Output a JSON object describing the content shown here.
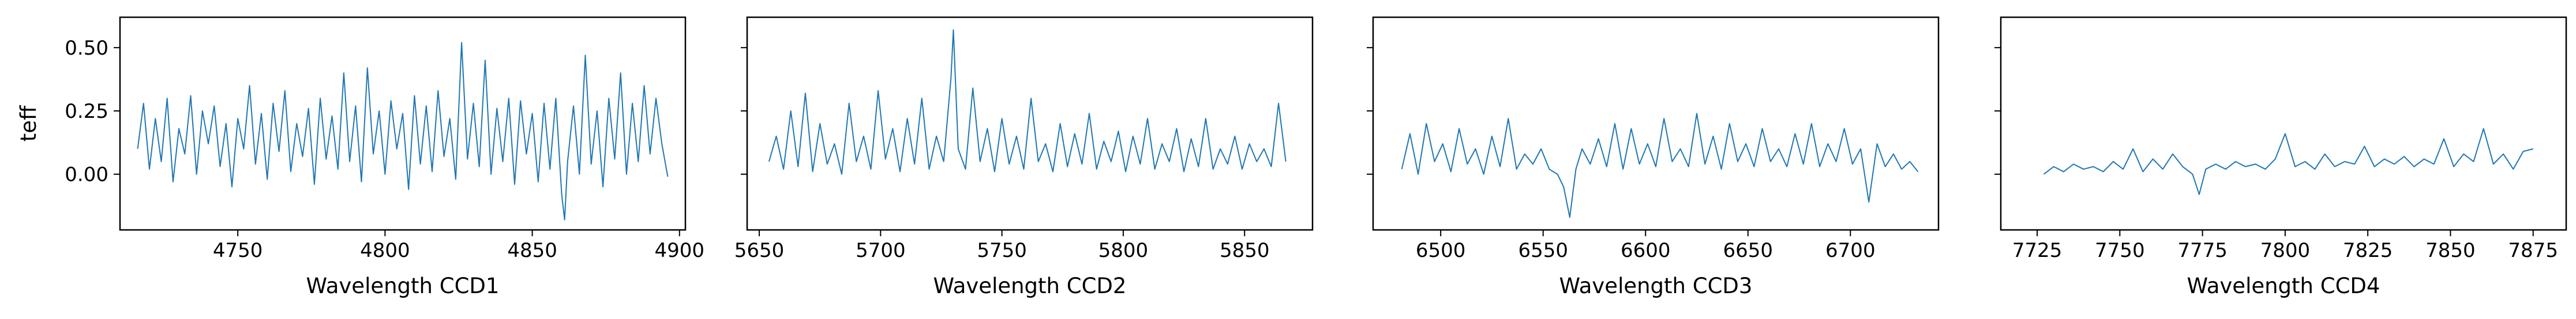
{
  "chart_data": [
    {
      "type": "line",
      "xlabel": "Wavelength CCD1",
      "ylabel": "teff",
      "xlim": [
        4710,
        4902
      ],
      "ylim": [
        -0.22,
        0.62
      ],
      "xticks": [
        4750,
        4800,
        4850,
        4900
      ],
      "xtick_labels": [
        "4750",
        "4800",
        "4850",
        "4900"
      ],
      "yticks": [
        0.0,
        0.25,
        0.5
      ],
      "ytick_labels": [
        "0.00",
        "0.25",
        "0.50"
      ],
      "series": [
        {
          "color": "#1f77b4",
          "x": [
            4716,
            4718,
            4720,
            4722,
            4724,
            4726,
            4728,
            4730,
            4732,
            4734,
            4736,
            4738,
            4740,
            4742,
            4744,
            4746,
            4748,
            4750,
            4752,
            4754,
            4756,
            4758,
            4760,
            4762,
            4764,
            4766,
            4768,
            4770,
            4772,
            4774,
            4776,
            4778,
            4780,
            4782,
            4784,
            4786,
            4788,
            4790,
            4792,
            4794,
            4796,
            4798,
            4800,
            4802,
            4804,
            4806,
            4808,
            4810,
            4812,
            4814,
            4816,
            4818,
            4820,
            4822,
            4824,
            4826,
            4828,
            4830,
            4832,
            4834,
            4836,
            4838,
            4840,
            4842,
            4844,
            4846,
            4848,
            4850,
            4852,
            4854,
            4856,
            4858,
            4860,
            4861,
            4862,
            4864,
            4866,
            4868,
            4870,
            4872,
            4874,
            4876,
            4878,
            4880,
            4882,
            4884,
            4886,
            4888,
            4890,
            4892,
            4894,
            4896
          ],
          "y": [
            0.1,
            0.28,
            0.02,
            0.22,
            0.05,
            0.3,
            -0.03,
            0.18,
            0.08,
            0.31,
            0.0,
            0.25,
            0.12,
            0.27,
            0.03,
            0.2,
            -0.05,
            0.22,
            0.1,
            0.35,
            0.04,
            0.24,
            -0.02,
            0.28,
            0.09,
            0.33,
            0.01,
            0.2,
            0.07,
            0.26,
            -0.04,
            0.3,
            0.06,
            0.23,
            0.02,
            0.4,
            0.05,
            0.27,
            -0.03,
            0.42,
            0.08,
            0.25,
            0.0,
            0.29,
            0.1,
            0.24,
            -0.06,
            0.31,
            0.04,
            0.27,
            0.01,
            0.33,
            0.07,
            0.22,
            -0.02,
            0.52,
            0.06,
            0.28,
            0.03,
            0.45,
            0.0,
            0.26,
            0.05,
            0.3,
            -0.04,
            0.29,
            0.08,
            0.24,
            -0.03,
            0.28,
            0.02,
            0.3,
            -0.08,
            -0.18,
            0.05,
            0.27,
            0.0,
            0.47,
            0.04,
            0.25,
            -0.05,
            0.3,
            0.06,
            0.4,
            0.0,
            0.28,
            0.05,
            0.35,
            0.08,
            0.3,
            0.12,
            -0.01
          ]
        }
      ]
    },
    {
      "type": "line",
      "xlabel": "Wavelength CCD2",
      "ylabel": "",
      "xlim": [
        5645,
        5878
      ],
      "ylim": [
        -0.22,
        0.62
      ],
      "xticks": [
        5650,
        5700,
        5750,
        5800,
        5850
      ],
      "xtick_labels": [
        "5650",
        "5700",
        "5750",
        "5800",
        "5850"
      ],
      "yticks": [
        0.0,
        0.25,
        0.5
      ],
      "ytick_labels": [
        "",
        "",
        ""
      ],
      "series": [
        {
          "color": "#1f77b4",
          "x": [
            5654,
            5657,
            5660,
            5663,
            5666,
            5669,
            5672,
            5675,
            5678,
            5681,
            5684,
            5687,
            5690,
            5693,
            5696,
            5699,
            5702,
            5705,
            5708,
            5711,
            5714,
            5717,
            5720,
            5723,
            5726,
            5729,
            5730,
            5732,
            5735,
            5738,
            5741,
            5744,
            5747,
            5750,
            5753,
            5756,
            5759,
            5762,
            5765,
            5768,
            5771,
            5774,
            5777,
            5780,
            5783,
            5786,
            5789,
            5792,
            5795,
            5798,
            5801,
            5804,
            5807,
            5810,
            5813,
            5816,
            5819,
            5822,
            5825,
            5828,
            5831,
            5834,
            5837,
            5840,
            5843,
            5846,
            5849,
            5852,
            5855,
            5858,
            5861,
            5864,
            5867
          ],
          "y": [
            0.05,
            0.15,
            0.02,
            0.25,
            0.03,
            0.32,
            0.01,
            0.2,
            0.04,
            0.12,
            0.0,
            0.28,
            0.05,
            0.15,
            0.02,
            0.33,
            0.06,
            0.18,
            0.01,
            0.22,
            0.04,
            0.3,
            0.02,
            0.15,
            0.05,
            0.38,
            0.57,
            0.1,
            0.02,
            0.34,
            0.05,
            0.18,
            0.01,
            0.22,
            0.04,
            0.15,
            0.02,
            0.3,
            0.05,
            0.12,
            0.01,
            0.2,
            0.03,
            0.16,
            0.04,
            0.24,
            0.02,
            0.13,
            0.05,
            0.17,
            0.01,
            0.15,
            0.04,
            0.22,
            0.02,
            0.12,
            0.05,
            0.18,
            0.01,
            0.14,
            0.03,
            0.22,
            0.02,
            0.1,
            0.04,
            0.15,
            0.02,
            0.12,
            0.05,
            0.1,
            0.03,
            0.28,
            0.05
          ]
        }
      ]
    },
    {
      "type": "line",
      "xlabel": "Wavelength CCD3",
      "ylabel": "",
      "xlim": [
        6467,
        6743
      ],
      "ylim": [
        -0.22,
        0.62
      ],
      "xticks": [
        6500,
        6550,
        6600,
        6650,
        6700
      ],
      "xtick_labels": [
        "6500",
        "6550",
        "6600",
        "6650",
        "6700"
      ],
      "yticks": [
        0.0,
        0.25,
        0.5
      ],
      "ytick_labels": [
        "",
        "",
        ""
      ],
      "series": [
        {
          "color": "#1f77b4",
          "x": [
            6481,
            6485,
            6489,
            6493,
            6497,
            6501,
            6505,
            6509,
            6513,
            6517,
            6521,
            6525,
            6529,
            6533,
            6537,
            6541,
            6545,
            6549,
            6553,
            6557,
            6560,
            6563,
            6566,
            6569,
            6573,
            6577,
            6581,
            6585,
            6589,
            6593,
            6597,
            6601,
            6605,
            6609,
            6613,
            6617,
            6621,
            6625,
            6629,
            6633,
            6637,
            6641,
            6645,
            6649,
            6653,
            6657,
            6661,
            6665,
            6669,
            6673,
            6677,
            6681,
            6685,
            6689,
            6693,
            6697,
            6701,
            6705,
            6709,
            6713,
            6717,
            6721,
            6725,
            6729,
            6733
          ],
          "y": [
            0.02,
            0.16,
            0.0,
            0.2,
            0.05,
            0.12,
            0.01,
            0.18,
            0.04,
            0.1,
            0.0,
            0.15,
            0.03,
            0.22,
            0.02,
            0.08,
            0.04,
            0.1,
            0.02,
            0.0,
            -0.05,
            -0.17,
            0.02,
            0.1,
            0.04,
            0.14,
            0.03,
            0.2,
            0.02,
            0.18,
            0.04,
            0.12,
            0.03,
            0.22,
            0.05,
            0.1,
            0.03,
            0.24,
            0.04,
            0.15,
            0.02,
            0.2,
            0.05,
            0.12,
            0.03,
            0.18,
            0.05,
            0.1,
            0.03,
            0.16,
            0.04,
            0.2,
            0.03,
            0.12,
            0.05,
            0.18,
            0.04,
            0.1,
            -0.11,
            0.12,
            0.03,
            0.08,
            0.02,
            0.05,
            0.01
          ]
        }
      ]
    },
    {
      "type": "line",
      "xlabel": "Wavelength CCD4",
      "ylabel": "",
      "xlim": [
        7714,
        7885
      ],
      "ylim": [
        -0.22,
        0.62
      ],
      "xticks": [
        7725,
        7750,
        7775,
        7800,
        7825,
        7850,
        7875
      ],
      "xtick_labels": [
        "7725",
        "7750",
        "7775",
        "7800",
        "7825",
        "7850",
        "7875"
      ],
      "yticks": [
        0.0,
        0.25,
        0.5
      ],
      "ytick_labels": [
        "",
        "",
        ""
      ],
      "series": [
        {
          "color": "#1f77b4",
          "x": [
            7727,
            7730,
            7733,
            7736,
            7739,
            7742,
            7745,
            7748,
            7751,
            7754,
            7757,
            7760,
            7763,
            7766,
            7769,
            7772,
            7774,
            7776,
            7779,
            7782,
            7785,
            7788,
            7791,
            7794,
            7797,
            7800,
            7803,
            7806,
            7809,
            7812,
            7815,
            7818,
            7821,
            7824,
            7827,
            7830,
            7833,
            7836,
            7839,
            7842,
            7845,
            7848,
            7851,
            7854,
            7857,
            7860,
            7863,
            7866,
            7869,
            7872,
            7875
          ],
          "y": [
            0.0,
            0.03,
            0.01,
            0.04,
            0.02,
            0.03,
            0.01,
            0.05,
            0.02,
            0.1,
            0.01,
            0.06,
            0.02,
            0.08,
            0.03,
            0.0,
            -0.08,
            0.02,
            0.04,
            0.02,
            0.05,
            0.03,
            0.04,
            0.02,
            0.06,
            0.16,
            0.03,
            0.05,
            0.02,
            0.08,
            0.03,
            0.05,
            0.04,
            0.11,
            0.03,
            0.06,
            0.04,
            0.07,
            0.03,
            0.06,
            0.04,
            0.14,
            0.03,
            0.08,
            0.05,
            0.18,
            0.04,
            0.08,
            0.02,
            0.09,
            0.1
          ]
        }
      ]
    }
  ]
}
